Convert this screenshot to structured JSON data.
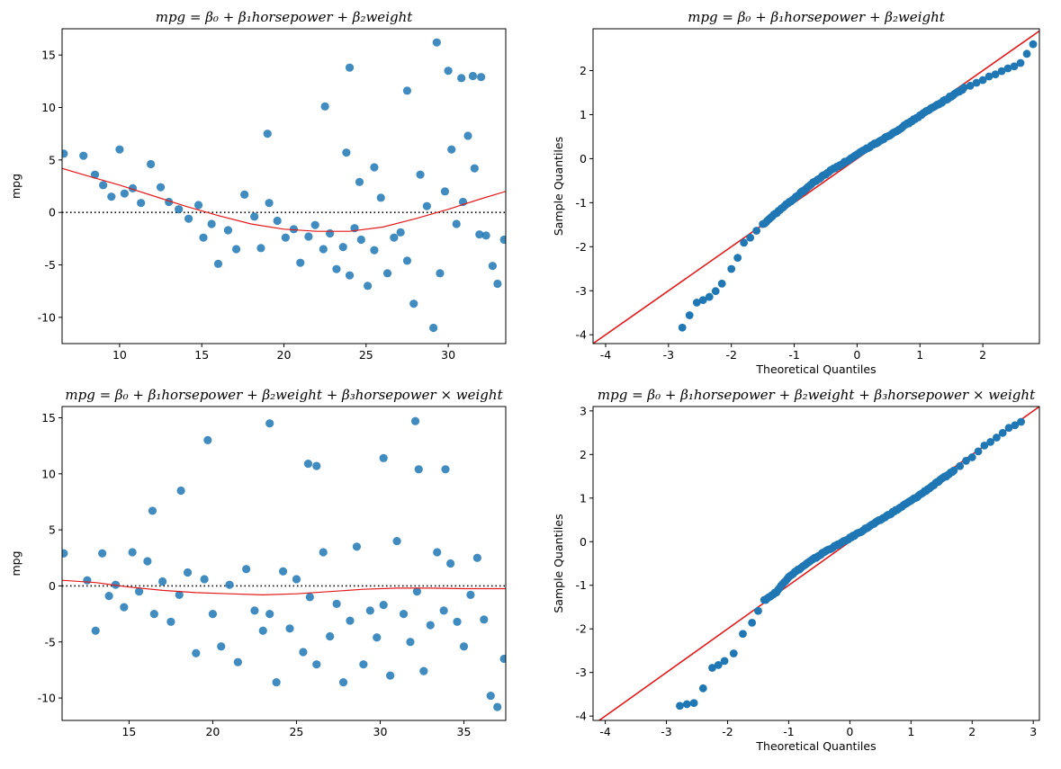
{
  "chart_data": [
    {
      "type": "scatter",
      "subtype": "residual-plot",
      "title": "mpg = β₀ + β₁horsepower + β₂weight",
      "xlabel": "",
      "ylabel": "mpg",
      "xlim": [
        6.5,
        33.5
      ],
      "ylim": [
        -12.5,
        17.5
      ],
      "xticks": [
        10,
        15,
        20,
        25,
        30
      ],
      "yticks": [
        -10,
        -5,
        0,
        5,
        10,
        15
      ],
      "point_color": "#1f77b4",
      "reference_line": {
        "y": 0,
        "style": "dotted",
        "color": "#000000"
      },
      "lowess": {
        "color": "#e31a1c",
        "x": [
          6.5,
          8,
          10,
          12,
          14,
          16,
          18,
          20,
          22,
          24,
          26,
          28,
          30,
          32,
          33.5
        ],
        "y": [
          4.2,
          3.5,
          2.6,
          1.6,
          0.6,
          -0.3,
          -1.1,
          -1.6,
          -1.8,
          -1.8,
          -1.4,
          -0.6,
          0.3,
          1.3,
          2.0
        ]
      },
      "series": [
        {
          "name": "",
          "x": [
            6.6,
            7.8,
            8.5,
            9.0,
            9.5,
            10.0,
            10.3,
            10.8,
            11.3,
            11.9,
            12.5,
            13.0,
            13.6,
            14.2,
            14.8,
            15.1,
            15.6,
            16.0,
            16.6,
            17.1,
            17.6,
            18.2,
            18.6,
            19.1,
            19.6,
            20.1,
            20.6,
            21.0,
            21.5,
            21.9,
            22.4,
            22.8,
            23.2,
            23.6,
            24.0,
            24.3,
            24.7,
            25.1,
            25.5,
            25.9,
            26.3,
            26.7,
            27.1,
            27.5,
            27.9,
            28.3,
            28.7,
            29.1,
            29.5,
            29.8,
            30.2,
            30.5,
            30.9,
            31.2,
            31.6,
            31.9,
            32.3,
            32.7,
            33.0,
            33.4,
            22.5,
            24.0,
            19.0,
            29.3,
            30.0,
            30.8,
            31.5,
            32.0,
            27.5,
            23.8,
            25.5,
            24.6
          ],
          "y": [
            5.6,
            5.4,
            3.6,
            2.6,
            1.5,
            6.0,
            1.8,
            2.3,
            0.9,
            4.6,
            2.4,
            1.0,
            0.3,
            -0.6,
            0.7,
            -2.4,
            -1.1,
            -4.9,
            -1.7,
            -3.5,
            1.7,
            -0.4,
            -3.4,
            0.9,
            -0.8,
            -2.4,
            -1.6,
            -4.8,
            -2.3,
            -1.2,
            -3.5,
            -2.0,
            -5.4,
            -3.3,
            -6.0,
            -1.5,
            -2.6,
            -7.0,
            -3.6,
            1.4,
            -5.8,
            -2.4,
            -1.9,
            -4.6,
            -8.7,
            3.6,
            0.6,
            -11.0,
            -5.8,
            2.0,
            6.0,
            -1.1,
            1.0,
            7.3,
            4.2,
            -2.1,
            -2.2,
            -5.1,
            -6.8,
            -2.6,
            10.1,
            13.8,
            7.5,
            16.2,
            13.5,
            12.8,
            13.0,
            12.9,
            11.6,
            5.7,
            4.3,
            2.9
          ]
        }
      ]
    },
    {
      "type": "scatter",
      "subtype": "qq-plot",
      "title": "mpg = β₀ + β₁horsepower + β₂weight",
      "xlabel": "Theoretical Quantiles",
      "ylabel": "Sample Quantiles",
      "xlim": [
        -4.2,
        2.9
      ],
      "ylim": [
        -4.2,
        2.95
      ],
      "xticks": [
        -4,
        -3,
        -2,
        -1,
        0,
        1,
        2
      ],
      "yticks": [
        -4,
        -3,
        -2,
        -1,
        0,
        1,
        2
      ],
      "point_color": "#1f77b4",
      "reference_line": {
        "type": "45-degree",
        "color": "#e31a1c"
      },
      "quantile_curve": {
        "x": [
          -2.78,
          -2.55,
          -2.35,
          -2.15,
          -2.0,
          -1.9,
          -1.8,
          -1.7,
          -1.5,
          -1.3,
          -1.0,
          -0.7,
          -0.4,
          -0.1,
          0.2,
          0.5,
          0.8,
          1.1,
          1.4,
          1.7,
          2.0,
          2.3,
          2.5,
          2.6,
          2.8
        ],
        "y": [
          -3.85,
          -3.28,
          -3.15,
          -2.85,
          -2.5,
          -2.25,
          -1.9,
          -1.8,
          -1.5,
          -1.25,
          -0.9,
          -0.55,
          -0.25,
          0.0,
          0.27,
          0.52,
          0.79,
          1.07,
          1.33,
          1.6,
          1.79,
          1.98,
          2.1,
          2.17,
          2.6
        ]
      }
    },
    {
      "type": "scatter",
      "subtype": "residual-plot",
      "title": "mpg = β₀ + β₁horsepower + β₂weight + β₃horsepower × weight",
      "xlabel": "",
      "ylabel": "mpg",
      "xlim": [
        11,
        37.5
      ],
      "ylim": [
        -12,
        16
      ],
      "xticks": [
        15,
        20,
        25,
        30,
        35
      ],
      "yticks": [
        -10,
        -5,
        0,
        5,
        10,
        15
      ],
      "point_color": "#1f77b4",
      "reference_line": {
        "y": 0,
        "style": "dotted",
        "color": "#000000"
      },
      "lowess": {
        "color": "#e31a1c",
        "x": [
          11,
          13,
          15,
          17,
          19,
          21,
          23,
          25,
          27,
          29,
          31,
          33,
          35,
          37.5
        ],
        "y": [
          0.5,
          0.3,
          -0.1,
          -0.4,
          -0.6,
          -0.7,
          -0.8,
          -0.7,
          -0.5,
          -0.3,
          -0.2,
          -0.2,
          -0.25,
          -0.25
        ]
      },
      "series": [
        {
          "name": "",
          "x": [
            11.1,
            12.5,
            13.0,
            13.4,
            13.8,
            14.2,
            14.7,
            15.2,
            15.6,
            16.1,
            16.5,
            17.0,
            17.5,
            18.0,
            18.5,
            19.0,
            19.5,
            20.0,
            20.5,
            21.0,
            21.5,
            22.0,
            22.5,
            23.0,
            23.4,
            23.8,
            24.2,
            24.6,
            25.0,
            25.4,
            25.8,
            26.2,
            26.6,
            27.0,
            27.4,
            27.8,
            28.2,
            28.6,
            29.0,
            29.4,
            29.8,
            30.2,
            30.6,
            31.0,
            31.4,
            31.8,
            32.2,
            32.6,
            33.0,
            33.4,
            33.8,
            34.2,
            34.6,
            35.0,
            35.4,
            35.8,
            36.2,
            36.6,
            37.0,
            37.4,
            23.4,
            32.1,
            19.7,
            25.7,
            30.2,
            18.1,
            16.4,
            26.2,
            32.3,
            33.9
          ],
          "y": [
            2.9,
            0.5,
            -4.0,
            2.9,
            -0.9,
            0.1,
            -1.9,
            3.0,
            -0.5,
            2.2,
            -2.5,
            0.4,
            -3.2,
            -0.8,
            1.2,
            -6.0,
            0.6,
            -2.5,
            -5.4,
            0.1,
            -6.8,
            1.5,
            -2.2,
            -4.0,
            -2.5,
            -8.6,
            1.3,
            -3.8,
            0.6,
            -5.9,
            -1.0,
            -7.0,
            3.0,
            -4.5,
            -1.6,
            -8.6,
            -3.1,
            3.5,
            -7.0,
            -2.2,
            -4.6,
            -1.7,
            -8.0,
            4.0,
            -2.5,
            -5.0,
            -0.5,
            -7.6,
            -3.5,
            3.0,
            -2.2,
            2.0,
            -3.2,
            -5.4,
            -0.8,
            2.5,
            -3.0,
            -9.8,
            -10.8,
            -6.5,
            14.5,
            14.7,
            13.0,
            10.9,
            11.4,
            8.5,
            6.7,
            10.7,
            10.4,
            10.4
          ]
        }
      ]
    },
    {
      "type": "scatter",
      "subtype": "qq-plot",
      "title": "mpg = β₀ + β₁horsepower + β₂weight + β₃horsepower × weight",
      "xlabel": "Theoretical Quantiles",
      "ylabel": "Sample Quantiles",
      "xlim": [
        -4.2,
        3.1
      ],
      "ylim": [
        -4.1,
        3.1
      ],
      "xticks": [
        -4,
        -3,
        -2,
        -1,
        0,
        1,
        2,
        3
      ],
      "yticks": [
        -4,
        -3,
        -2,
        -1,
        0,
        1,
        2,
        3
      ],
      "point_color": "#1f77b4",
      "reference_line": {
        "type": "45-degree",
        "color": "#e31a1c"
      },
      "quantile_curve": {
        "x": [
          -2.78,
          -2.55,
          -2.4,
          -2.25,
          -2.05,
          -1.9,
          -1.75,
          -1.6,
          -1.4,
          -1.2,
          -1.0,
          -0.7,
          -0.4,
          -0.1,
          0.2,
          0.5,
          0.8,
          1.1,
          1.4,
          1.7,
          2.0,
          2.2,
          2.4,
          2.6,
          2.8
        ],
        "y": [
          -3.75,
          -3.7,
          -3.35,
          -2.9,
          -2.75,
          -2.55,
          -2.1,
          -1.85,
          -1.35,
          -1.15,
          -0.8,
          -0.5,
          -0.22,
          0.0,
          0.25,
          0.5,
          0.76,
          1.03,
          1.33,
          1.63,
          1.95,
          2.2,
          2.4,
          2.62,
          2.75
        ]
      }
    }
  ]
}
